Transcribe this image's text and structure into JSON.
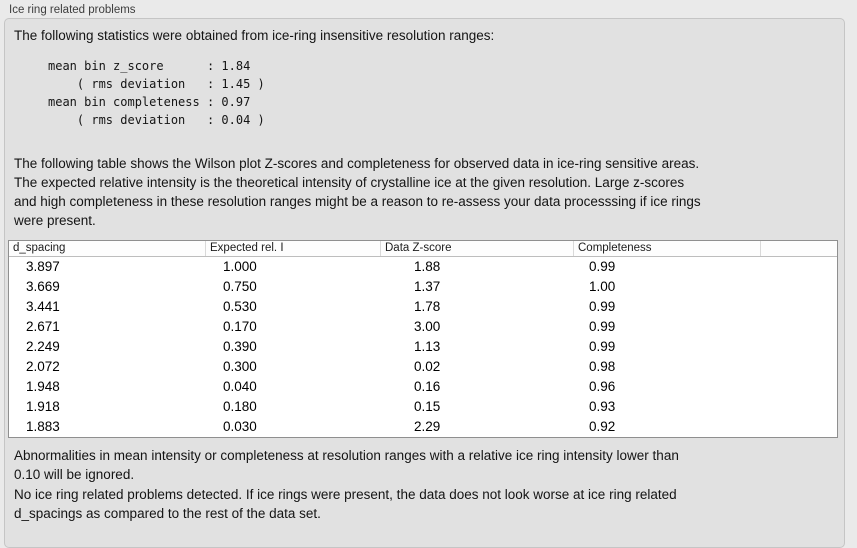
{
  "panel": {
    "group_label": "Ice ring related problems"
  },
  "sections": {
    "intro": "The following statistics were obtained from ice-ring insensitive resolution ranges:",
    "table_description": "The following table shows the Wilson plot Z-scores and completeness for observed data in ice-ring sensitive areas.\nThe expected relative intensity is the theoretical intensity of crystalline ice at the given resolution. Large z-scores\nand high completeness in these resolution ranges might be a reason to re-assess your data processsing if ice rings\nwere present.",
    "ignore_note": "Abnormalities in mean intensity or completeness at resolution ranges with a relative ice ring intensity lower than\n0.10 will be ignored.",
    "conclusion": "No ice ring related problems detected. If ice rings were present, the data does not look worse at ice ring related\nd_spacings as compared to the rest of the data set."
  },
  "stats": {
    "mean_bin_z_score": "1.84",
    "z_score_rms_deviation": "1.45",
    "mean_bin_completeness": "0.97",
    "completeness_rms_deviation": "0.04",
    "lines": [
      "mean bin z_score      : 1.84",
      "    ( rms deviation   : 1.45 )",
      "mean bin completeness : 0.97",
      "    ( rms deviation   : 0.04 )"
    ]
  },
  "table": {
    "headers": [
      "d_spacing",
      "Expected rel. I",
      "Data Z-score",
      "Completeness"
    ],
    "rows": [
      [
        "3.897",
        "1.000",
        "1.88",
        "0.99"
      ],
      [
        "3.669",
        "0.750",
        "1.37",
        "1.00"
      ],
      [
        "3.441",
        "0.530",
        "1.78",
        "0.99"
      ],
      [
        "2.671",
        "0.170",
        "3.00",
        "0.99"
      ],
      [
        "2.249",
        "0.390",
        "1.13",
        "0.99"
      ],
      [
        "2.072",
        "0.300",
        "0.02",
        "0.98"
      ],
      [
        "1.948",
        "0.040",
        "0.16",
        "0.96"
      ],
      [
        "1.918",
        "0.180",
        "0.15",
        "0.93"
      ],
      [
        "1.883",
        "0.030",
        "2.29",
        "0.92"
      ]
    ],
    "colors": {
      "panel_background": "#e1e1e1",
      "page_background": "#eaeaea",
      "table_background": "#ffffff",
      "table_border": "#8f8f8f"
    }
  }
}
